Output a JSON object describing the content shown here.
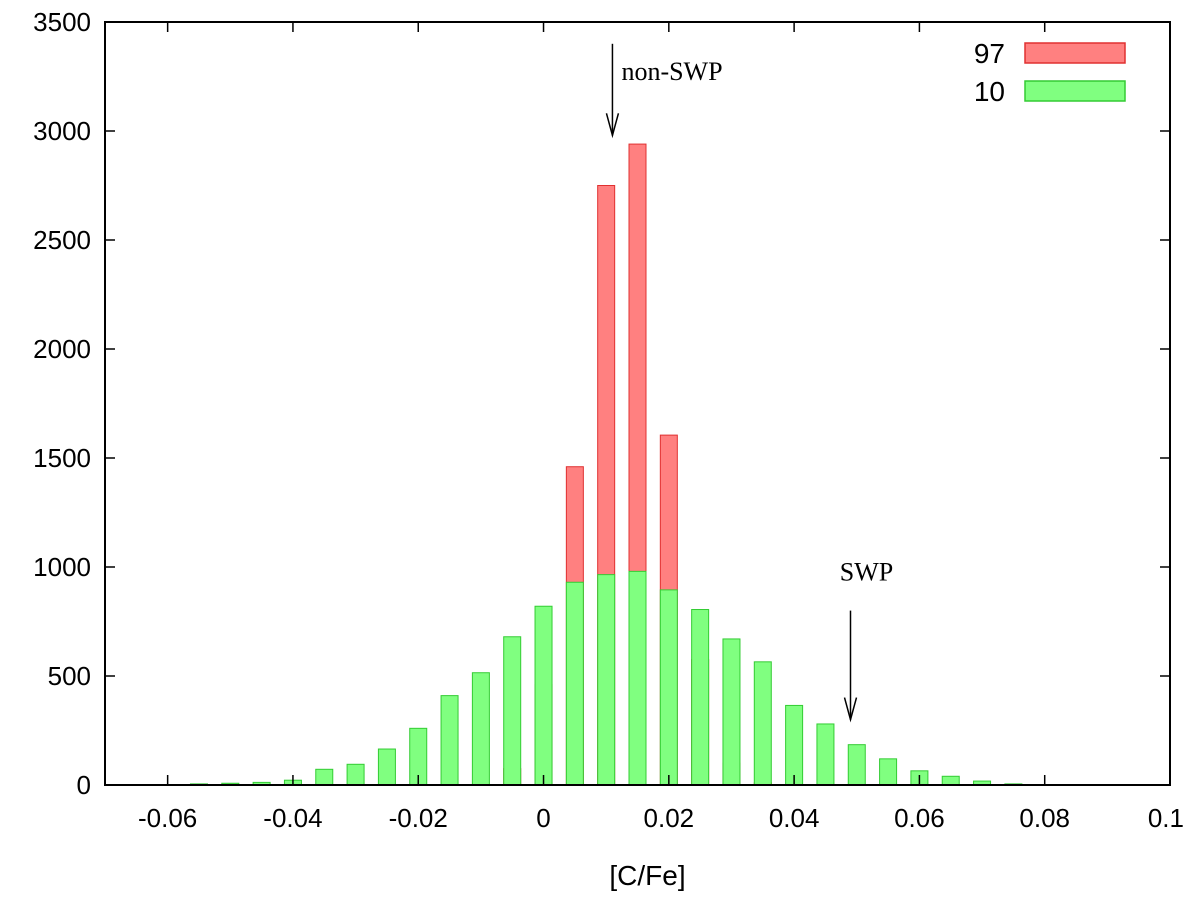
{
  "chart_data": {
    "type": "bar",
    "title": "",
    "xlabel": "[C/Fe]",
    "ylabel": "",
    "xlim": [
      -0.07,
      0.1
    ],
    "ylim": [
      0,
      3500
    ],
    "xticks": [
      "-0.06",
      "-0.04",
      "-0.02",
      "0",
      "0.02",
      "0.04",
      "0.06",
      "0.08",
      "0.1"
    ],
    "yticks": [
      "0",
      "500",
      "1000",
      "1500",
      "2000",
      "2500",
      "3000",
      "3500"
    ],
    "legend_position": "top-right",
    "grid": false,
    "series": [
      {
        "name": "97",
        "color": "#ff8080",
        "edge": "#e03030",
        "x": [
          -0.03,
          -0.025,
          -0.02,
          -0.015,
          -0.01,
          -0.005,
          0,
          0.005,
          0.01,
          0.015,
          0.02,
          0.025,
          0.03,
          0.035
        ],
        "values": [
          0,
          0,
          0,
          0,
          3,
          75,
          460,
          1460,
          2750,
          2940,
          1605,
          575,
          100,
          10
        ]
      },
      {
        "name": "10",
        "color": "#80ff80",
        "edge": "#33cc33",
        "x": [
          -0.065,
          -0.06,
          -0.055,
          -0.05,
          -0.045,
          -0.04,
          -0.035,
          -0.03,
          -0.025,
          -0.02,
          -0.015,
          -0.01,
          -0.005,
          0,
          0.005,
          0.01,
          0.015,
          0.02,
          0.025,
          0.03,
          0.035,
          0.04,
          0.045,
          0.05,
          0.055,
          0.06,
          0.065,
          0.07,
          0.075,
          0.08,
          0.085
        ],
        "values": [
          0,
          2,
          5,
          8,
          12,
          22,
          72,
          95,
          165,
          260,
          410,
          515,
          680,
          820,
          930,
          965,
          980,
          895,
          805,
          670,
          565,
          365,
          280,
          185,
          120,
          65,
          40,
          18,
          5,
          2,
          0
        ]
      }
    ],
    "annotations": [
      {
        "text": "non-SWP",
        "x": 0.011,
        "y_top": 3400,
        "y_bottom": 2980
      },
      {
        "text": "SWP",
        "x": 0.049,
        "y_top": 800,
        "y_bottom": 300
      }
    ]
  }
}
